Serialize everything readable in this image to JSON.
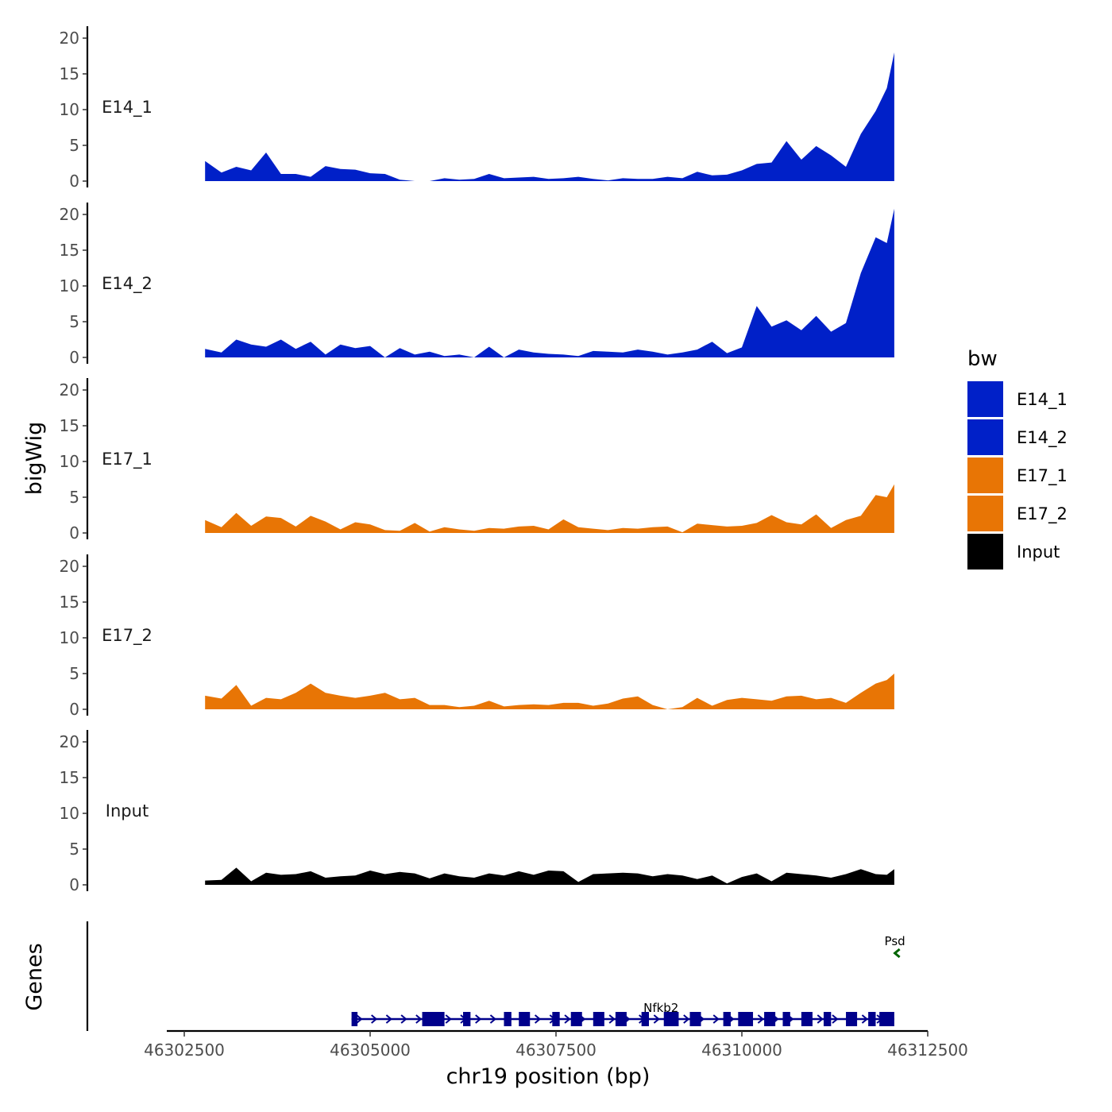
{
  "chart_data": {
    "type": "area",
    "title": "",
    "xlabel": "chr19 position (bp)",
    "ylabel": "bigWig",
    "genes_label": "Genes",
    "chromosome": "chr19",
    "xlim": [
      46302500,
      46312500
    ],
    "x_ticks": [
      46302500,
      46305000,
      46307500,
      46310000,
      46312500
    ],
    "x_tick_labels": [
      "46302500",
      "46305000",
      "46307500",
      "46310000",
      "46312500"
    ],
    "ylim": [
      0,
      21
    ],
    "y_ticks": [
      0,
      5,
      10,
      15,
      20
    ],
    "y_tick_labels": [
      "0",
      "5",
      "10",
      "15",
      "20"
    ],
    "legend": {
      "title": "bw",
      "position": "right",
      "entries": [
        {
          "label": "E14_1",
          "color": "#0020C8"
        },
        {
          "label": "E14_2",
          "color": "#0020C8"
        },
        {
          "label": "E17_1",
          "color": "#E87505"
        },
        {
          "label": "E17_2",
          "color": "#E87505"
        },
        {
          "label": "Input",
          "color": "#000000"
        }
      ]
    },
    "x": [
      46302780,
      46303000,
      46303200,
      46303400,
      46303600,
      46303800,
      46304000,
      46304200,
      46304400,
      46304600,
      46304800,
      46305000,
      46305200,
      46305400,
      46305600,
      46305800,
      46306000,
      46306200,
      46306400,
      46306600,
      46306800,
      46307000,
      46307200,
      46307400,
      46307600,
      46307800,
      46308000,
      46308200,
      46308400,
      46308600,
      46308800,
      46309000,
      46309200,
      46309400,
      46309600,
      46309800,
      46310000,
      46310200,
      46310400,
      46310600,
      46310800,
      46311000,
      46311200,
      46311400,
      46311600,
      46311800,
      46311950,
      46312050
    ],
    "series": [
      {
        "name": "E14_1",
        "color": "#0020C8",
        "values": [
          2.8,
          1.2,
          2.0,
          1.5,
          4.0,
          1.0,
          1.0,
          0.6,
          2.1,
          1.7,
          1.6,
          1.1,
          1.0,
          0.2,
          0,
          0,
          0.4,
          0.2,
          0.3,
          1.0,
          0.4,
          0.5,
          0.6,
          0.3,
          0.4,
          0.6,
          0.3,
          0.1,
          0.4,
          0.3,
          0.3,
          0.6,
          0.4,
          1.3,
          0.8,
          0.9,
          1.5,
          2.4,
          2.6,
          5.6,
          3.0,
          4.9,
          3.6,
          2.0,
          6.6,
          9.8,
          13.0,
          18.0
        ]
      },
      {
        "name": "E14_2",
        "color": "#0020C8",
        "values": [
          1.2,
          0.7,
          2.5,
          1.8,
          1.5,
          2.5,
          1.2,
          2.2,
          0.4,
          1.8,
          1.3,
          1.6,
          0,
          1.3,
          0.4,
          0.8,
          0.2,
          0.4,
          0,
          1.5,
          0,
          1.1,
          0.7,
          0.5,
          0.4,
          0.2,
          0.9,
          0.8,
          0.7,
          1.1,
          0.8,
          0.4,
          0.7,
          1.1,
          2.2,
          0.6,
          1.4,
          7.2,
          4.3,
          5.2,
          3.8,
          5.8,
          3.6,
          4.8,
          11.8,
          16.8,
          16.0,
          20.8
        ]
      },
      {
        "name": "E17_1",
        "color": "#E87505",
        "values": [
          1.8,
          0.8,
          2.8,
          1.0,
          2.3,
          2.1,
          0.9,
          2.4,
          1.6,
          0.5,
          1.5,
          1.2,
          0.4,
          0.3,
          1.4,
          0.2,
          0.8,
          0.5,
          0.3,
          0.7,
          0.6,
          0.9,
          1.0,
          0.5,
          1.9,
          0.8,
          0.6,
          0.4,
          0.7,
          0.6,
          0.8,
          0.9,
          0.1,
          1.3,
          1.1,
          0.9,
          1.0,
          1.4,
          2.5,
          1.5,
          1.2,
          2.6,
          0.7,
          1.8,
          2.4,
          5.3,
          5.0,
          6.8
        ]
      },
      {
        "name": "E17_2",
        "color": "#E87505",
        "values": [
          1.9,
          1.5,
          3.4,
          0.5,
          1.6,
          1.4,
          2.3,
          3.6,
          2.3,
          1.9,
          1.6,
          1.9,
          2.3,
          1.4,
          1.6,
          0.6,
          0.6,
          0.3,
          0.5,
          1.2,
          0.4,
          0.6,
          0.7,
          0.6,
          0.9,
          0.9,
          0.5,
          0.8,
          1.5,
          1.8,
          0.6,
          0,
          0.3,
          1.6,
          0.5,
          1.3,
          1.6,
          1.4,
          1.2,
          1.8,
          1.9,
          1.4,
          1.6,
          0.9,
          2.3,
          3.6,
          4.1,
          5.0
        ]
      },
      {
        "name": "Input",
        "color": "#000000",
        "values": [
          0.6,
          0.7,
          2.4,
          0.5,
          1.7,
          1.4,
          1.5,
          1.9,
          1.0,
          1.2,
          1.3,
          2.0,
          1.5,
          1.8,
          1.6,
          0.9,
          1.6,
          1.2,
          1.0,
          1.6,
          1.3,
          1.9,
          1.4,
          2.0,
          1.9,
          0.4,
          1.5,
          1.6,
          1.7,
          1.6,
          1.2,
          1.5,
          1.3,
          0.8,
          1.3,
          0.2,
          1.1,
          1.6,
          0.5,
          1.7,
          1.5,
          1.3,
          1.0,
          1.5,
          2.2,
          1.5,
          1.4,
          2.2
        ]
      }
    ],
    "genes": [
      {
        "name": "Nfkb2",
        "strand": "+",
        "color": "#00008B",
        "start": 46304750,
        "end": 46312050,
        "exons": [
          [
            46304750,
            46304830
          ],
          [
            46305700,
            46306000
          ],
          [
            46306250,
            46306350
          ],
          [
            46306800,
            46306900
          ],
          [
            46307000,
            46307150
          ],
          [
            46307450,
            46307550
          ],
          [
            46307700,
            46307850
          ],
          [
            46308000,
            46308150
          ],
          [
            46308300,
            46308450
          ],
          [
            46308650,
            46308750
          ],
          [
            46308950,
            46309150
          ],
          [
            46309300,
            46309450
          ],
          [
            46309750,
            46309850
          ],
          [
            46309950,
            46310150
          ],
          [
            46310300,
            46310450
          ],
          [
            46310550,
            46310650
          ],
          [
            46310800,
            46310950
          ],
          [
            46311100,
            46311200
          ],
          [
            46311400,
            46311550
          ],
          [
            46311700,
            46311800
          ],
          [
            46311850,
            46312050
          ]
        ]
      },
      {
        "name": "Psd",
        "strand": "-",
        "color": "#006400",
        "start": 46312060,
        "end": 46312120,
        "exons": []
      }
    ]
  }
}
